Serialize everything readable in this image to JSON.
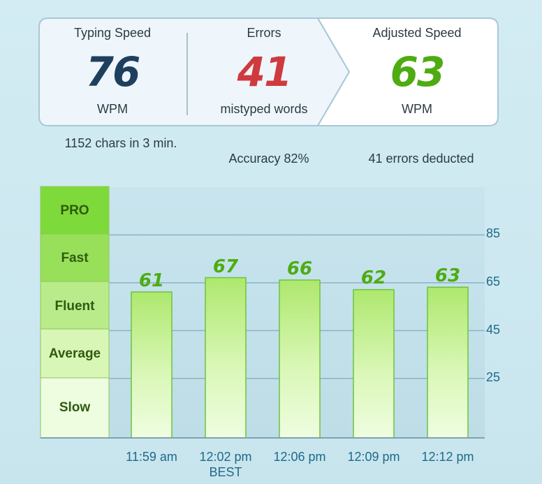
{
  "summary": {
    "typing_speed": {
      "label": "Typing Speed",
      "value": "76",
      "unit": "WPM"
    },
    "errors": {
      "label": "Errors",
      "value": "41",
      "unit": "mistyped words"
    },
    "adjusted_speed": {
      "label": "Adjusted Speed",
      "value": "63",
      "unit": "WPM"
    }
  },
  "notes": {
    "chars": "1152 chars in 3 min.",
    "accuracy": "Accuracy 82%",
    "deducted": "41 errors deducted"
  },
  "levels": [
    "PRO",
    "Fast",
    "Fluent",
    "Average",
    "Slow"
  ],
  "colors": {
    "speed": "#1f3f5e",
    "errors": "#cf3a3e",
    "adjusted": "#4eac12"
  },
  "chart_data": {
    "type": "bar",
    "categories": [
      "11:59 am",
      "12:02 pm",
      "12:06 pm",
      "12:09 pm",
      "12:12 pm"
    ],
    "values": [
      61,
      67,
      66,
      62,
      63
    ],
    "data_labels": [
      "61",
      "67",
      "66",
      "62",
      "63"
    ],
    "best_index": 1,
    "best_label": "BEST",
    "y_ticks": [
      "85",
      "65",
      "45",
      "25"
    ],
    "ylim": [
      0,
      105
    ],
    "grid": true
  }
}
